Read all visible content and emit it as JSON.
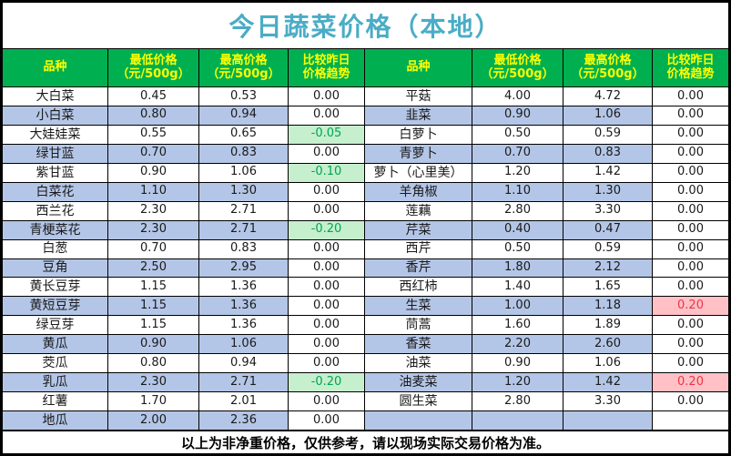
{
  "title": "今日蔬菜价格（本地）",
  "footer_note": "以上为非净重价格，仅供参考，请以现场实际交易价格为准。",
  "colors": {
    "title_text": "#4BACC6",
    "header_bg": "#00B050",
    "header_text": "#FFFF00",
    "stripe_bg": "#B4C6E7",
    "trend_down_bg": "#C6EFCE",
    "trend_down_text": "#00A650",
    "trend_up_bg": "#FFC1C6",
    "trend_up_text": "#EE3348",
    "border": "#000000"
  },
  "table": {
    "headers": [
      "品种",
      "最低价格\n（元/500g）",
      "最高价格\n（元/500g）",
      "比较昨日\n价格趋势"
    ],
    "left_rows": [
      {
        "name": "大白菜",
        "min": "0.45",
        "max": "0.53",
        "trend": "0.00"
      },
      {
        "name": "小白菜",
        "min": "0.80",
        "max": "0.94",
        "trend": "0.00"
      },
      {
        "name": "大娃娃菜",
        "min": "0.55",
        "max": "0.65",
        "trend": "-0.05"
      },
      {
        "name": "绿甘蓝",
        "min": "0.70",
        "max": "0.83",
        "trend": "0.00"
      },
      {
        "name": "紫甘蓝",
        "min": "0.90",
        "max": "1.06",
        "trend": "-0.10"
      },
      {
        "name": "白菜花",
        "min": "1.10",
        "max": "1.30",
        "trend": "0.00"
      },
      {
        "name": "西兰花",
        "min": "2.30",
        "max": "2.71",
        "trend": "0.00"
      },
      {
        "name": "青梗菜花",
        "min": "2.30",
        "max": "2.71",
        "trend": "-0.20"
      },
      {
        "name": "白葱",
        "min": "0.70",
        "max": "0.83",
        "trend": "0.00"
      },
      {
        "name": "豆角",
        "min": "2.50",
        "max": "2.95",
        "trend": "0.00"
      },
      {
        "name": "黄长豆芽",
        "min": "1.15",
        "max": "1.36",
        "trend": "0.00"
      },
      {
        "name": "黄短豆芽",
        "min": "1.15",
        "max": "1.36",
        "trend": "0.00"
      },
      {
        "name": "绿豆芽",
        "min": "1.15",
        "max": "1.36",
        "trend": "0.00"
      },
      {
        "name": "黄瓜",
        "min": "0.90",
        "max": "1.06",
        "trend": "0.00"
      },
      {
        "name": "茭瓜",
        "min": "0.80",
        "max": "0.94",
        "trend": "0.00"
      },
      {
        "name": "乳瓜",
        "min": "2.30",
        "max": "2.71",
        "trend": "-0.20"
      },
      {
        "name": "红薯",
        "min": "1.70",
        "max": "2.01",
        "trend": "0.00"
      },
      {
        "name": "地瓜",
        "min": "2.00",
        "max": "2.36",
        "trend": "0.00"
      }
    ],
    "right_rows": [
      {
        "name": "平菇",
        "min": "4.00",
        "max": "4.72",
        "trend": "0.00"
      },
      {
        "name": "韭菜",
        "min": "0.90",
        "max": "1.06",
        "trend": "0.00"
      },
      {
        "name": "白萝卜",
        "min": "0.50",
        "max": "0.59",
        "trend": "0.00"
      },
      {
        "name": "青萝卜",
        "min": "0.70",
        "max": "0.83",
        "trend": "0.00"
      },
      {
        "name": "萝卜（心里美）",
        "min": "1.20",
        "max": "1.42",
        "trend": "0.00"
      },
      {
        "name": "羊角椒",
        "min": "1.10",
        "max": "1.30",
        "trend": "0.00"
      },
      {
        "name": "莲藕",
        "min": "2.80",
        "max": "3.30",
        "trend": "0.00"
      },
      {
        "name": "芹菜",
        "min": "0.40",
        "max": "0.47",
        "trend": "0.00"
      },
      {
        "name": "西芹",
        "min": "0.50",
        "max": "0.59",
        "trend": "0.00"
      },
      {
        "name": "香芹",
        "min": "1.80",
        "max": "2.12",
        "trend": "0.00"
      },
      {
        "name": "西红柿",
        "min": "1.40",
        "max": "1.65",
        "trend": "0.00"
      },
      {
        "name": "生菜",
        "min": "1.00",
        "max": "1.18",
        "trend": "0.20"
      },
      {
        "name": "茼蒿",
        "min": "1.60",
        "max": "1.89",
        "trend": "0.00"
      },
      {
        "name": "香菜",
        "min": "2.20",
        "max": "2.60",
        "trend": "0.00"
      },
      {
        "name": "油菜",
        "min": "0.90",
        "max": "1.06",
        "trend": "0.00"
      },
      {
        "name": "油麦菜",
        "min": "1.20",
        "max": "1.42",
        "trend": "0.20"
      },
      {
        "name": "圆生菜",
        "min": "2.80",
        "max": "3.30",
        "trend": "0.00"
      },
      {
        "name": "",
        "min": "",
        "max": "",
        "trend": ""
      }
    ]
  }
}
